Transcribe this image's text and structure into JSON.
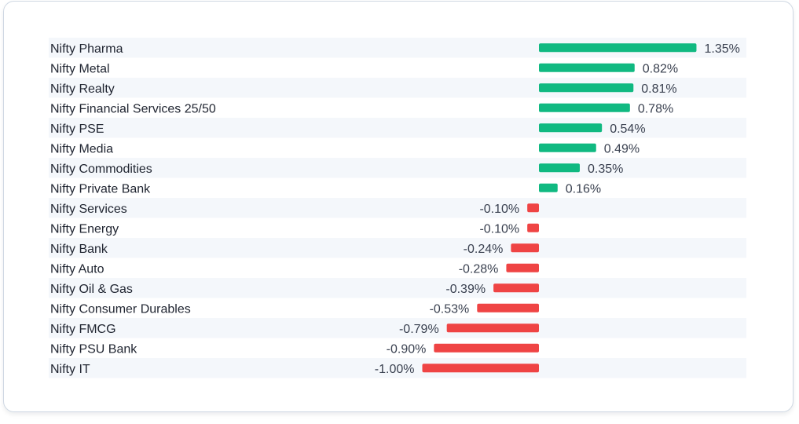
{
  "colors": {
    "positive": "#10b981",
    "negative": "#ef4444",
    "row_stripe": "#f4f7fb",
    "border": "#cfd8e3"
  },
  "chart_data": {
    "type": "bar",
    "orientation": "horizontal",
    "categories": [
      "Nifty Pharma",
      "Nifty Metal",
      "Nifty Realty",
      "Nifty Financial Services 25/50",
      "Nifty PSE",
      "Nifty Media",
      "Nifty Commodities",
      "Nifty Private Bank",
      "Nifty Services",
      "Nifty Energy",
      "Nifty Bank",
      "Nifty Auto",
      "Nifty Oil & Gas",
      "Nifty Consumer Durables",
      "Nifty FMCG",
      "Nifty PSU Bank",
      "Nifty IT"
    ],
    "values": [
      1.35,
      0.82,
      0.81,
      0.78,
      0.54,
      0.49,
      0.35,
      0.16,
      -0.1,
      -0.1,
      -0.24,
      -0.28,
      -0.39,
      -0.53,
      -0.79,
      -0.9,
      -1.0
    ],
    "value_labels": [
      "1.35%",
      "0.82%",
      "0.81%",
      "0.78%",
      "0.54%",
      "0.49%",
      "0.35%",
      "0.16%",
      "-0.10%",
      "-0.10%",
      "-0.24%",
      "-0.28%",
      "-0.39%",
      "-0.53%",
      "-0.79%",
      "-0.90%",
      "-1.00%"
    ],
    "unit": "%",
    "xlim": [
      -1.0,
      1.35
    ],
    "grid": false,
    "legend": "none",
    "row_striping": "alternate"
  }
}
